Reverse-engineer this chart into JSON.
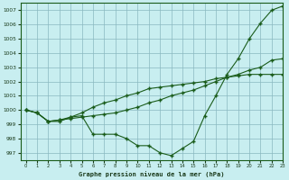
{
  "title": "Graphe pression niveau de la mer (hPa)",
  "background_color": "#c8eef0",
  "grid_color": "#8ab8c0",
  "line_color": "#1a5c1a",
  "xlim": [
    -0.5,
    23
  ],
  "ylim": [
    996.5,
    1007.5
  ],
  "yticks": [
    997,
    998,
    999,
    1000,
    1001,
    1002,
    1003,
    1004,
    1005,
    1006,
    1007
  ],
  "xticks": [
    0,
    1,
    2,
    3,
    4,
    5,
    6,
    7,
    8,
    9,
    10,
    11,
    12,
    13,
    14,
    15,
    16,
    17,
    18,
    19,
    20,
    21,
    22,
    23
  ],
  "series": [
    [
      1000.0,
      999.8,
      999.2,
      999.2,
      999.5,
      999.6,
      998.3,
      998.3,
      998.3,
      998.0,
      997.5,
      997.5,
      997.0,
      996.8,
      997.3,
      997.8,
      999.6,
      1001.0,
      1002.5,
      1003.6,
      1005.0,
      1006.1,
      1007.0,
      1007.3
    ],
    [
      1000.0,
      999.8,
      999.2,
      999.3,
      999.5,
      999.8,
      1000.2,
      1000.5,
      1000.7,
      1001.0,
      1001.2,
      1001.5,
      1001.6,
      1001.7,
      1001.8,
      1001.9,
      1002.0,
      1002.2,
      1002.3,
      1002.4,
      1002.5,
      1002.5,
      1002.5,
      1002.5
    ],
    [
      1000.0,
      999.8,
      999.2,
      999.3,
      999.4,
      999.5,
      999.6,
      999.7,
      999.8,
      1000.0,
      1000.2,
      1000.5,
      1000.7,
      1001.0,
      1001.2,
      1001.4,
      1001.7,
      1002.0,
      1002.3,
      1002.5,
      1002.8,
      1003.0,
      1003.5,
      1003.6
    ]
  ]
}
